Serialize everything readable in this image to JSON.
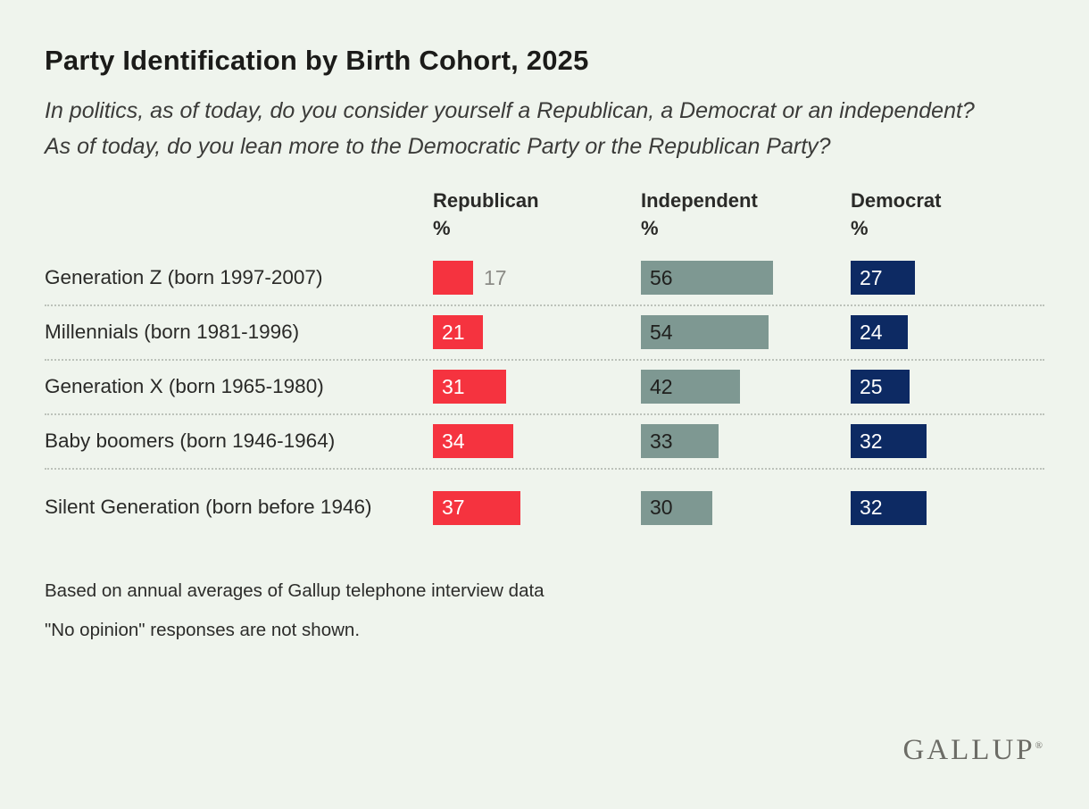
{
  "page": {
    "background_color": "#eff4ed"
  },
  "header": {
    "title": "Party Identification by Birth Cohort, 2025",
    "question_1": "In politics, as of today, do you consider yourself a Republican, a Democrat or an independent?",
    "question_2": "As of today, do you lean more to the Democratic Party or the Republican Party?"
  },
  "chart_data": {
    "type": "bar",
    "orientation": "horizontal",
    "title": "Party Identification by Birth Cohort, 2025",
    "unit": "%",
    "value_labels_shown": true,
    "grid": "off",
    "xlim": [
      0,
      60
    ],
    "categories": [
      "Generation Z (born 1997-2007)",
      "Millennials (born 1981-1996)",
      "Generation X (born 1965-1980)",
      "Baby boomers (born 1946-1964)",
      "Silent Generation (born before 1946)"
    ],
    "series": [
      {
        "name": "Republican",
        "color": "#f5333f",
        "label_color": "#ffffff",
        "values": [
          17,
          21,
          31,
          34,
          37
        ]
      },
      {
        "name": "Independent",
        "color": "#7e9892",
        "label_color": "#20201e",
        "values": [
          56,
          54,
          42,
          33,
          30
        ]
      },
      {
        "name": "Democrat",
        "color": "#0d2a63",
        "label_color": "#ffffff",
        "values": [
          27,
          24,
          25,
          32,
          32
        ]
      }
    ]
  },
  "colors": {
    "republican": "#f5333f",
    "independent": "#7e9892",
    "democrat": "#0d2a63",
    "outside_value_label": "#8b8b86",
    "separator": "#bcc2ba"
  },
  "footer": {
    "note_1": "Based on annual averages of Gallup telephone interview data",
    "note_2": "\"No opinion\" responses are not shown.",
    "logo_text": "GALLUP",
    "logo_mark": "®"
  }
}
